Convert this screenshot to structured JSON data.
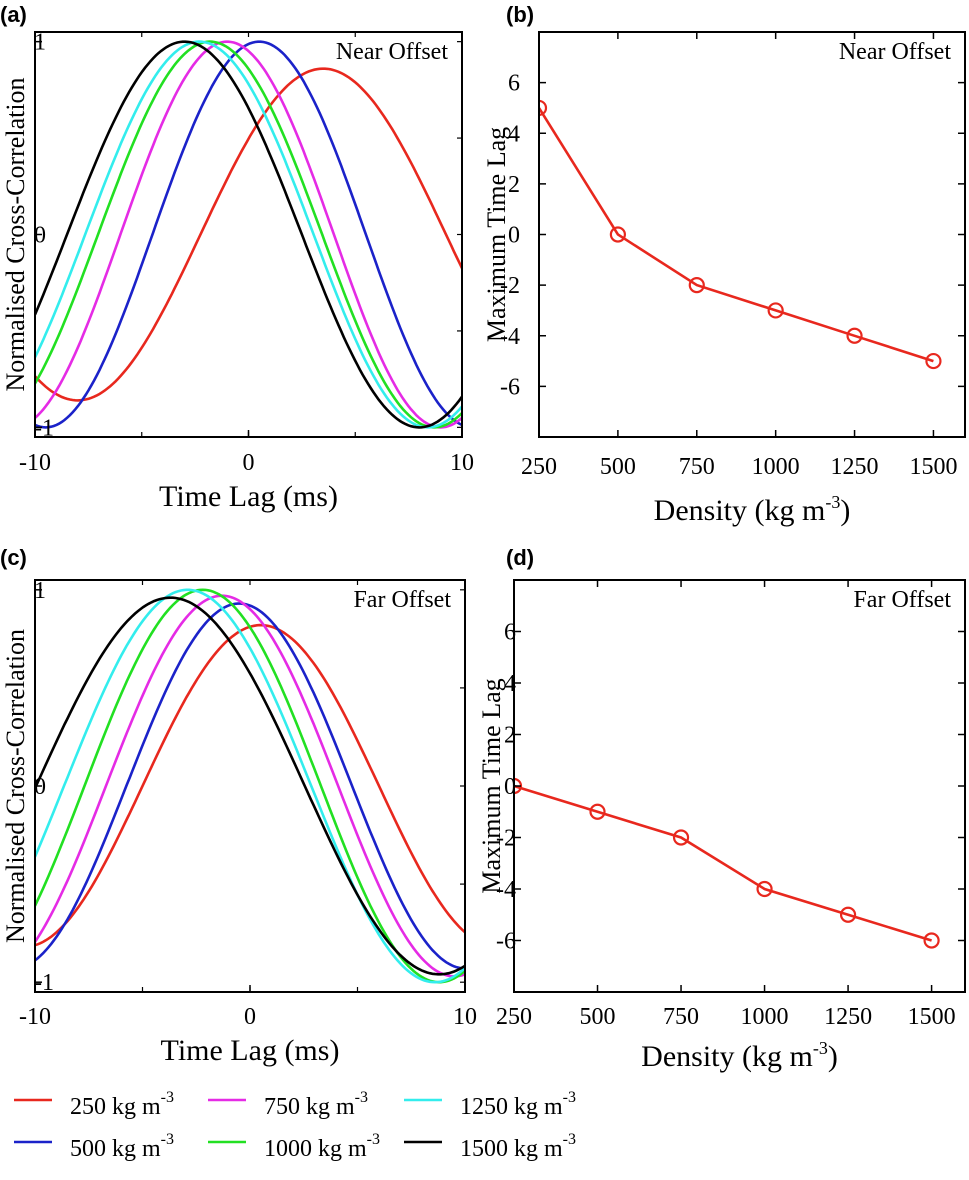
{
  "colors": {
    "250": "#e8281e",
    "500": "#1b22c9",
    "750": "#e52be5",
    "1000": "#22e022",
    "1250": "#33eded",
    "1500": "#000000",
    "points": "#e8281e"
  },
  "legend": {
    "unit_prefix": "kg m",
    "unit_exp": "-3",
    "items": [
      {
        "key": "250",
        "value": "250"
      },
      {
        "key": "750",
        "value": "750"
      },
      {
        "key": "1250",
        "value": "1250"
      },
      {
        "key": "500",
        "value": "500"
      },
      {
        "key": "1000",
        "value": "1000"
      },
      {
        "key": "1500",
        "value": "1500"
      }
    ]
  },
  "chart_data": [
    {
      "panel": "(a)",
      "type": "line",
      "annotation": "Near Offset",
      "xlabel": "Time Lag (ms)",
      "ylabel": "Normalised Cross-Correlation",
      "xlim": [
        -10,
        10
      ],
      "ylim": [
        -1.05,
        1.05
      ],
      "xticks": [
        "-10",
        "0",
        "10"
      ],
      "yticks": [
        "-1",
        "0",
        "1"
      ],
      "series": [
        {
          "name": "250",
          "peak_x": 3.5,
          "amplitude": 0.86,
          "half_period": 11.5
        },
        {
          "name": "500",
          "peak_x": 0.5,
          "amplitude": 1.0,
          "half_period": 10.0
        },
        {
          "name": "750",
          "peak_x": -1.0,
          "amplitude": 1.0,
          "half_period": 10.0
        },
        {
          "name": "1000",
          "peak_x": -1.8,
          "amplitude": 1.0,
          "half_period": 10.5
        },
        {
          "name": "1250",
          "peak_x": -2.3,
          "amplitude": 1.0,
          "half_period": 10.7
        },
        {
          "name": "1500",
          "peak_x": -3.0,
          "amplitude": 1.0,
          "half_period": 11.0
        }
      ]
    },
    {
      "panel": "(b)",
      "type": "line",
      "annotation": "Near Offset",
      "xlabel": "Density (kg m",
      "xlabel_exp": "-3",
      "xlabel_end": ")",
      "ylabel": "Maximum Time Lag",
      "xlim": [
        250,
        1600
      ],
      "ylim": [
        -8,
        8
      ],
      "xticks": [
        "250",
        "500",
        "750",
        "1000",
        "1250",
        "1500"
      ],
      "yticks": [
        "-6",
        "-4",
        "-2",
        "0",
        "2",
        "4",
        "6"
      ],
      "x": [
        250,
        500,
        750,
        1000,
        1250,
        1500
      ],
      "y": [
        5,
        0,
        -2,
        -3,
        -4,
        -5
      ]
    },
    {
      "panel": "(c)",
      "type": "line",
      "annotation": "Far Offset",
      "xlabel": "Time Lag (ms)",
      "ylabel": "Normalised Cross-Correlation",
      "xlim": [
        -10,
        10
      ],
      "ylim": [
        -1.05,
        1.05
      ],
      "xticks": [
        "-10",
        "0",
        "10"
      ],
      "yticks": [
        "-1",
        "0",
        "1"
      ],
      "series": [
        {
          "name": "250",
          "peak_x": 0.5,
          "amplitude": 0.82,
          "half_period": 11.0
        },
        {
          "name": "500",
          "peak_x": -0.5,
          "amplitude": 0.93,
          "half_period": 10.5
        },
        {
          "name": "750",
          "peak_x": -1.3,
          "amplitude": 0.97,
          "half_period": 10.8
        },
        {
          "name": "1000",
          "peak_x": -2.2,
          "amplitude": 1.0,
          "half_period": 11.0
        },
        {
          "name": "1250",
          "peak_x": -2.9,
          "amplitude": 1.0,
          "half_period": 11.5
        },
        {
          "name": "1500",
          "peak_x": -3.7,
          "amplitude": 0.96,
          "half_period": 12.5
        }
      ]
    },
    {
      "panel": "(d)",
      "type": "line",
      "annotation": "Far Offset",
      "xlabel": "Density (kg m",
      "xlabel_exp": "-3",
      "xlabel_end": ")",
      "ylabel": "Maximum Time Lag",
      "xlim": [
        250,
        1600
      ],
      "ylim": [
        -8,
        8
      ],
      "xticks": [
        "250",
        "500",
        "750",
        "1000",
        "1250",
        "1500"
      ],
      "yticks": [
        "-6",
        "-4",
        "-2",
        "0",
        "2",
        "4",
        "6"
      ],
      "x": [
        250,
        500,
        750,
        1000,
        1250,
        1500
      ],
      "y": [
        0,
        -1,
        -2,
        -4,
        -5,
        -6
      ]
    }
  ]
}
